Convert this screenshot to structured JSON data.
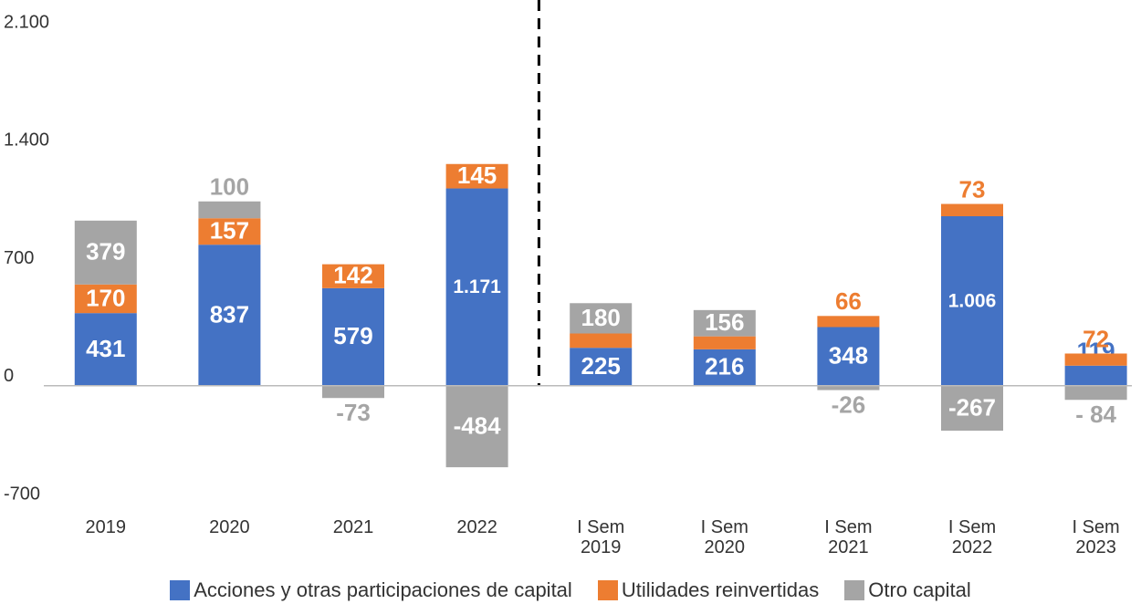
{
  "chart_data": {
    "type": "bar",
    "stacked": true,
    "categories": [
      "2019",
      "2020",
      "2021",
      "2022",
      "I Sem 2019",
      "I Sem 2020",
      "I Sem 2021",
      "I Sem 2022",
      "I Sem 2023"
    ],
    "series": [
      {
        "name": "Acciones y otras participaciones de capital",
        "color": "#4472c4",
        "values": [
          431,
          837,
          579,
          1171,
          225,
          216,
          348,
          1006,
          119
        ],
        "value_labels": [
          "431",
          "837",
          "579",
          "1.171",
          "225",
          "216",
          "348",
          "1.006",
          "119"
        ]
      },
      {
        "name": "Utilidades reinvertidas",
        "color": "#ed7d31",
        "values": [
          170,
          157,
          142,
          145,
          85,
          77,
          66,
          73,
          72
        ]
      },
      {
        "name": "Otro capital",
        "color": "#a5a5a5",
        "values": [
          379,
          100,
          -73,
          -484,
          180,
          156,
          -26,
          -267,
          -84
        ],
        "value_labels": [
          "379",
          "100",
          "-73",
          "-484",
          "180",
          "156",
          "-26",
          "-267",
          "- 84"
        ]
      }
    ],
    "ylim": [
      -700,
      2100
    ],
    "yticks": [
      {
        "value": -700,
        "label": "-700"
      },
      0,
      700,
      {
        "value": 1400,
        "label": "1.400"
      },
      {
        "value": 2100,
        "label": "2.100"
      }
    ],
    "grid": false,
    "legend": "bottom"
  }
}
